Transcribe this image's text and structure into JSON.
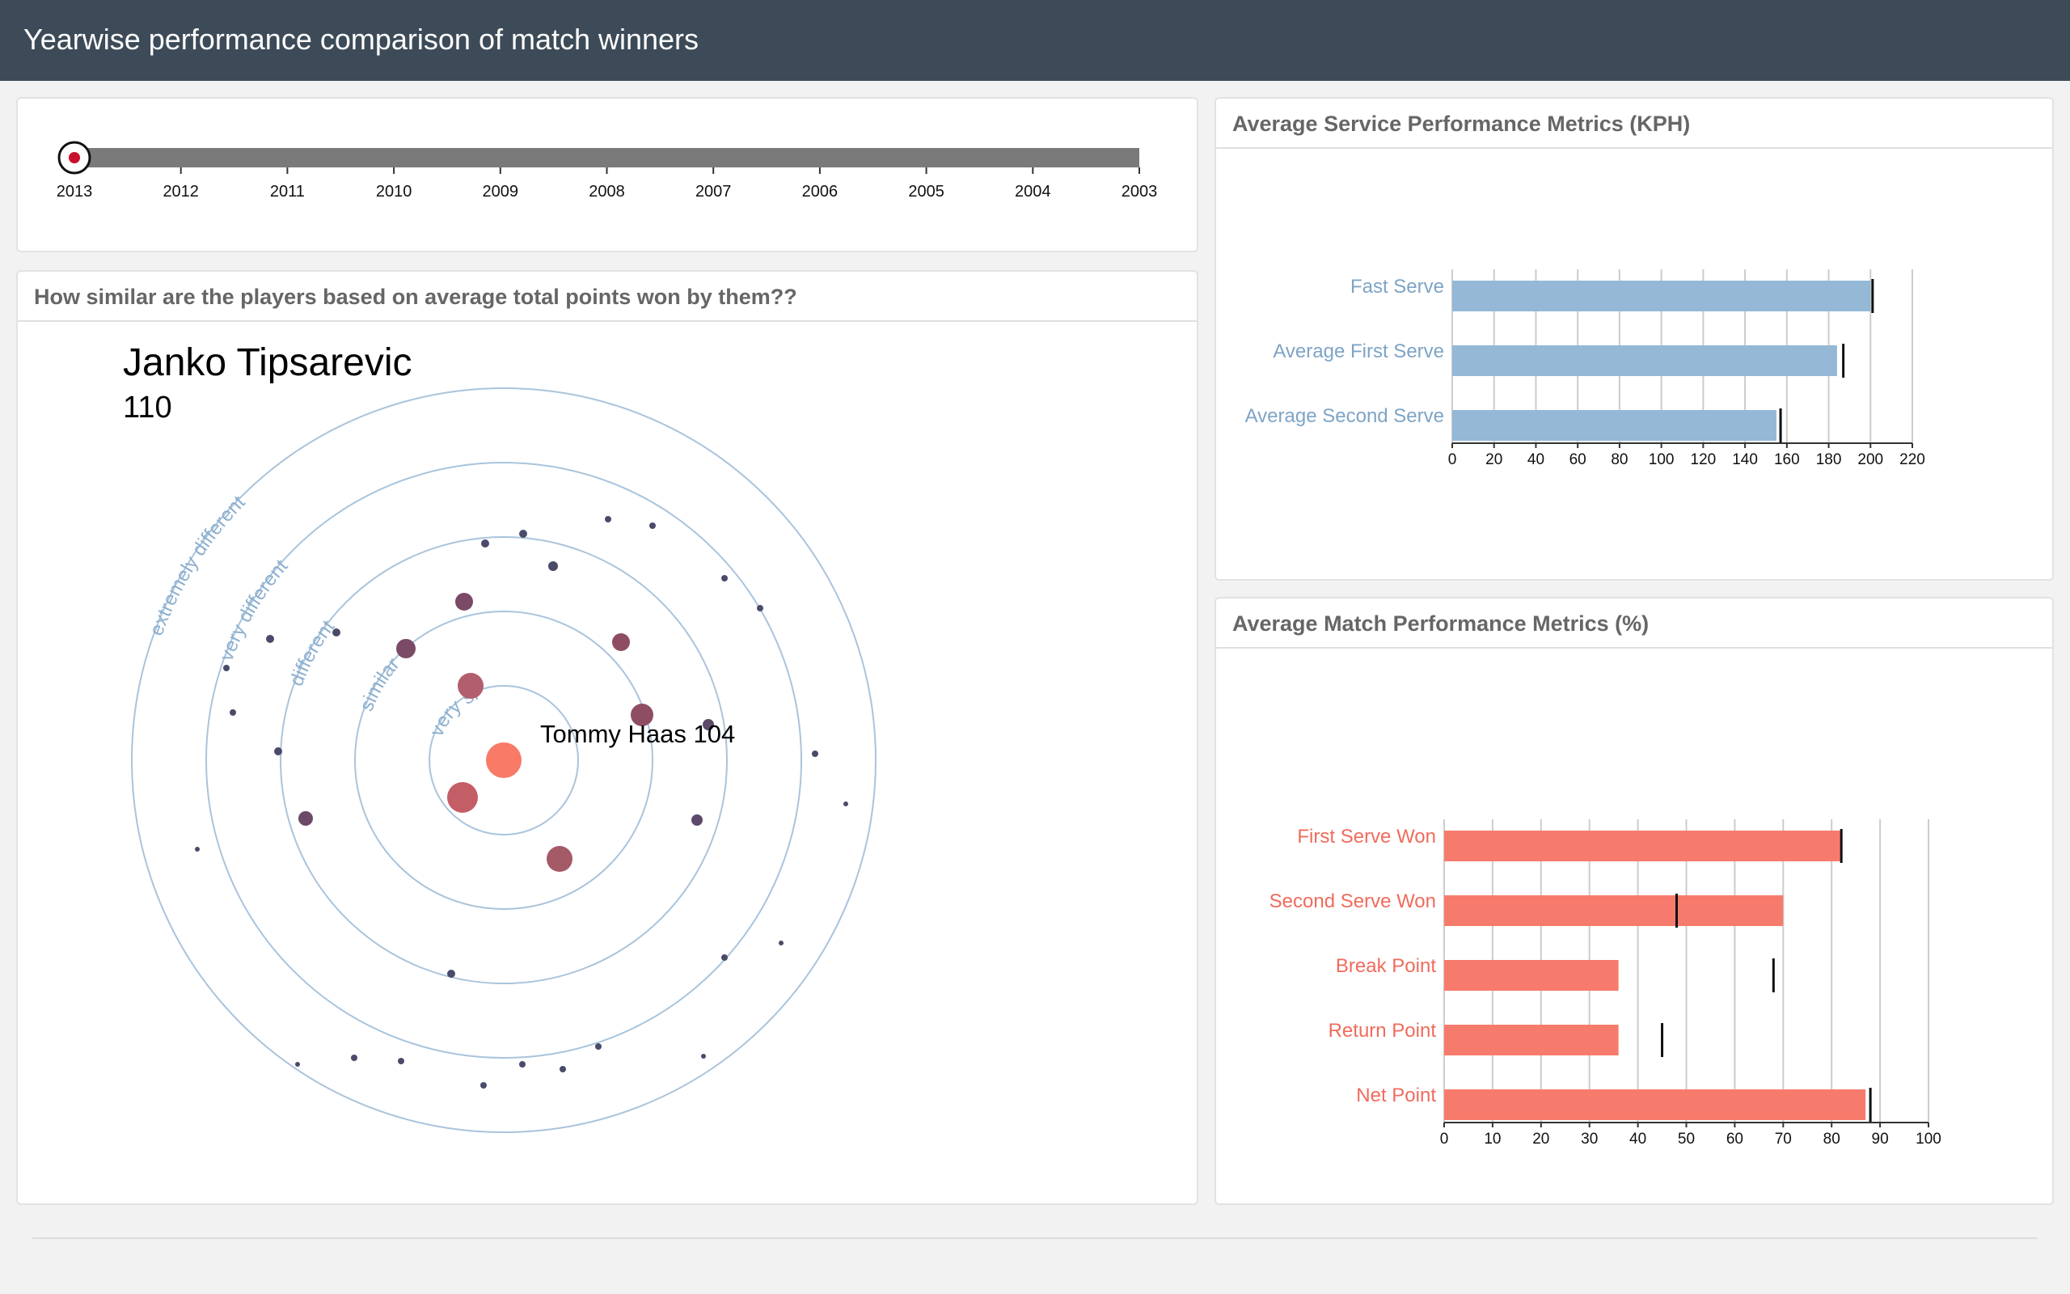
{
  "header": {
    "title": "Yearwise performance comparison of match winners"
  },
  "timeline": {
    "years": [
      "2013",
      "2012",
      "2011",
      "2010",
      "2009",
      "2008",
      "2007",
      "2006",
      "2005",
      "2004",
      "2003"
    ],
    "selected": "2013"
  },
  "similarity": {
    "title": "How similar are the players based on average total points won by them??",
    "selected_player": "Janko Tipsarevic",
    "selected_points": "110",
    "hover_label": "Tommy Haas 104",
    "ring_labels": [
      "very similar",
      "similar",
      "different",
      "very different",
      "extremely different"
    ]
  },
  "service": {
    "title": "Average Service Performance Metrics (KPH)",
    "chart_data": {
      "type": "bar",
      "categories": [
        "Fast Serve",
        "Average First Serve",
        "Average Second Serve"
      ],
      "values": [
        200,
        184,
        155
      ],
      "markers": [
        201,
        187,
        157
      ],
      "xlim": [
        0,
        220
      ],
      "xticks": [
        0,
        20,
        40,
        60,
        80,
        100,
        120,
        140,
        160,
        180,
        200,
        220
      ],
      "color": "#94b8d6",
      "label_color": "#7ea4c6"
    }
  },
  "match": {
    "title": "Average Match Performance Metrics (%)",
    "chart_data": {
      "type": "bar",
      "categories": [
        "First Serve Won",
        "Second Serve Won",
        "Break Point",
        "Return Point",
        "Net Point"
      ],
      "values": [
        82,
        70,
        36,
        36,
        87
      ],
      "markers": [
        82,
        48,
        68,
        45,
        88
      ],
      "xlim": [
        0,
        100
      ],
      "xticks": [
        0,
        10,
        20,
        30,
        40,
        50,
        60,
        70,
        80,
        90,
        100
      ],
      "color": "#f77b6c",
      "label_color": "#f06b5c"
    }
  }
}
